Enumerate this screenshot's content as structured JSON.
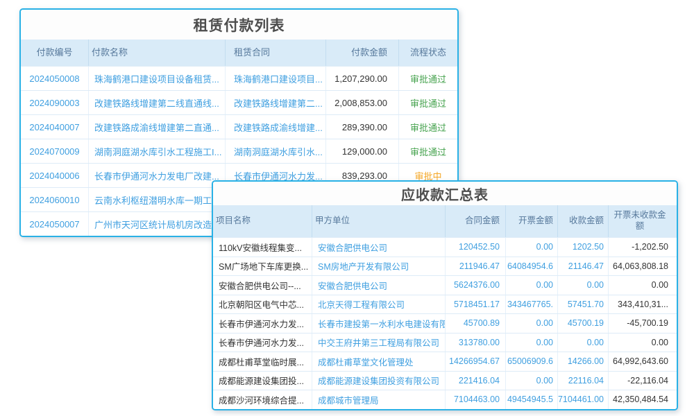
{
  "colors": {
    "card_border": "#29b1e6",
    "header_bg": "#d9ebf8",
    "header_text": "#56789b",
    "link_blue": "#3f9fe0",
    "dark_text": "#333333",
    "title_text": "#4d4d4d",
    "status_approved_green": "#47a34f",
    "status_pending_orange": "#f5a623"
  },
  "lease": {
    "title": "租赁付款列表",
    "columns": [
      "付款编号",
      "付款名称",
      "租赁合同",
      "付款金额",
      "流程状态"
    ],
    "rows": [
      {
        "no": "2024050008",
        "name": "珠海鹤港口建设项目设备租赁...",
        "contract": "珠海鹤港口建设项目...",
        "amount": "1,207,290.00",
        "status": "审批通过",
        "status_type": "approved"
      },
      {
        "no": "2024090003",
        "name": "改建铁路线增建第二线直通线...",
        "contract": "改建铁路线增建第二...",
        "amount": "2,008,853.00",
        "status": "审批通过",
        "status_type": "approved"
      },
      {
        "no": "2024040007",
        "name": "改建铁路成渝线增建第二直通...",
        "contract": "改建铁路成渝线增建...",
        "amount": "289,390.00",
        "status": "审批通过",
        "status_type": "approved"
      },
      {
        "no": "2024070009",
        "name": "湖南洞庭湖水库引水工程施工I...",
        "contract": "湖南洞庭湖水库引水...",
        "amount": "129,000.00",
        "status": "审批通过",
        "status_type": "approved"
      },
      {
        "no": "2024040006",
        "name": "长春市伊通河水力发电厂改建...",
        "contract": "长春市伊通河水力发...",
        "amount": "839,293.00",
        "status": "审批中",
        "status_type": "pending"
      },
      {
        "no": "2024060010",
        "name": "云南水利枢纽潜明水库一期工...",
        "contract": "",
        "amount": "",
        "status": "",
        "status_type": ""
      },
      {
        "no": "2024050007",
        "name": "广州市天河区统计局机房改造...",
        "contract": "",
        "amount": "",
        "status": "",
        "status_type": ""
      }
    ]
  },
  "receivable": {
    "title": "应收款汇总表",
    "columns": [
      "项目名称",
      "甲方单位",
      "合同金额",
      "开票金额",
      "收款金额",
      "开票未收款金额"
    ],
    "rows": [
      {
        "project": "110kV安徽线程集变...",
        "client": "安徽合肥供电公司",
        "contract": "120452.50",
        "invoiced": "0.00",
        "received": "1202.50",
        "outstanding": "-1,202.50"
      },
      {
        "project": "SM广场地下车库更换...",
        "client": "SM房地产开发有限公司",
        "contract": "211946.47",
        "invoiced": "64084954.6",
        "received": "21146.47",
        "outstanding": "64,063,808.18"
      },
      {
        "project": "安徽合肥供电公司--...",
        "client": "安徽合肥供电公司",
        "contract": "5624376.00",
        "invoiced": "0.00",
        "received": "0.00",
        "outstanding": "0.00"
      },
      {
        "project": "北京朝阳区电气中芯...",
        "client": "北京天得工程有限公司",
        "contract": "5718451.17",
        "invoiced": "343467765.",
        "received": "57451.70",
        "outstanding": "343,410,31..."
      },
      {
        "project": "长春市伊通河水力发...",
        "client": "长春市建投第一水利水电建设有限",
        "contract": "45700.89",
        "invoiced": "0.00",
        "received": "45700.19",
        "outstanding": "-45,700.19"
      },
      {
        "project": "长春市伊通河水力发...",
        "client": "中交王府井第三工程局有限公司",
        "contract": "313780.00",
        "invoiced": "0.00",
        "received": "0.00",
        "outstanding": "0.00"
      },
      {
        "project": "成都杜甫草堂临时展...",
        "client": "成都杜甫草堂文化管理处",
        "contract": "14266954.67",
        "invoiced": "65006909.6",
        "received": "14266.00",
        "outstanding": "64,992,643.60"
      },
      {
        "project": "成都能源建设集团投...",
        "client": "成都能源建设集团投资有限公司",
        "contract": "221416.04",
        "invoiced": "0.00",
        "received": "22116.04",
        "outstanding": "-22,116.04"
      },
      {
        "project": "成都沙河环境综合提...",
        "client": "成都城市管理局",
        "contract": "7104463.00",
        "invoiced": "49454945.5",
        "received": "7104461.00",
        "outstanding": "42,350,484.54"
      }
    ]
  }
}
